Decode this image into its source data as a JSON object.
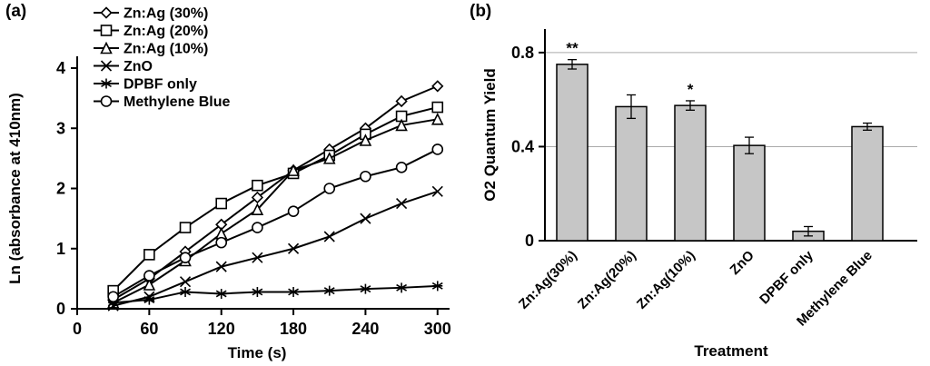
{
  "figure": {
    "panel_a_label": "(a)",
    "panel_b_label": "(b)"
  },
  "chart_data": [
    {
      "type": "line",
      "panel": "a",
      "title": "",
      "xlabel": "Time (s)",
      "ylabel": "Ln (absorbance at 410nm)",
      "xlim": [
        0,
        310
      ],
      "ylim": [
        0,
        4
      ],
      "xticks": [
        0,
        60,
        120,
        180,
        240,
        300
      ],
      "yticks": [
        0,
        1,
        2,
        3,
        4
      ],
      "grid": false,
      "legend_position": "top-left",
      "line_color": "#000000",
      "x": [
        30,
        60,
        90,
        120,
        150,
        180,
        210,
        240,
        270,
        300
      ],
      "series": [
        {
          "name": "Zn:Ag (30%)",
          "marker": "diamond",
          "values": [
            0.15,
            0.5,
            0.95,
            1.4,
            1.85,
            2.3,
            2.65,
            3.0,
            3.45,
            3.7
          ]
        },
        {
          "name": "Zn:Ag (20%)",
          "marker": "square",
          "values": [
            0.3,
            0.9,
            1.35,
            1.75,
            2.05,
            2.25,
            2.55,
            2.9,
            3.2,
            3.35
          ]
        },
        {
          "name": "Zn:Ag (10%)",
          "marker": "triangle",
          "values": [
            0.1,
            0.4,
            0.8,
            1.25,
            1.65,
            2.3,
            2.5,
            2.8,
            3.05,
            3.15
          ]
        },
        {
          "name": "ZnO",
          "marker": "x",
          "values": [
            0.05,
            0.2,
            0.45,
            0.7,
            0.85,
            1.0,
            1.2,
            1.5,
            1.75,
            1.95
          ]
        },
        {
          "name": "DPBF only",
          "marker": "asterisk",
          "values": [
            0.1,
            0.15,
            0.28,
            0.25,
            0.28,
            0.28,
            0.3,
            0.33,
            0.35,
            0.38
          ]
        },
        {
          "name": "Methylene Blue",
          "marker": "circle",
          "values": [
            0.2,
            0.55,
            0.85,
            1.1,
            1.35,
            1.62,
            2.0,
            2.2,
            2.35,
            2.65
          ]
        }
      ]
    },
    {
      "type": "bar",
      "panel": "b",
      "title": "",
      "xlabel": "Treatment",
      "ylabel": "O2 Quantum Yield",
      "ylim": [
        0,
        0.9
      ],
      "yticks": [
        0,
        0.4,
        0.8
      ],
      "grid": true,
      "grid_color": "#aaaaaa",
      "bar_color": "#c6c6c6",
      "bar_border_color": "#000000",
      "categories": [
        "Zn:Ag(30%)",
        "Zn:Ag(20%)",
        "Zn:Ag(10%)",
        "ZnO",
        "DPBF only",
        "Methylene Blue"
      ],
      "values": [
        0.75,
        0.57,
        0.575,
        0.405,
        0.04,
        0.485
      ],
      "errors": [
        0.02,
        0.05,
        0.02,
        0.035,
        0.02,
        0.015
      ],
      "annotations": [
        "**",
        "",
        "*",
        "",
        "",
        ""
      ]
    }
  ]
}
